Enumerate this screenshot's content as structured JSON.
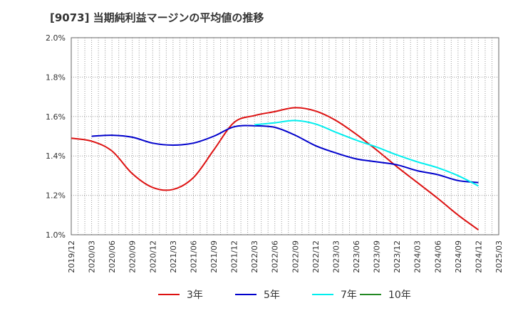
{
  "chart_data": {
    "type": "line",
    "title": "[9073]  当期純利益マージンの平均値の推移",
    "xlabel": "",
    "ylabel": "",
    "x_ticks": [
      "2019/12",
      "2020/03",
      "2020/06",
      "2020/09",
      "2020/12",
      "2021/03",
      "2021/06",
      "2021/09",
      "2021/12",
      "2022/03",
      "2022/06",
      "2022/09",
      "2022/12",
      "2023/03",
      "2023/06",
      "2023/09",
      "2023/12",
      "2024/03",
      "2024/06",
      "2024/09",
      "2024/12",
      "2025/03"
    ],
    "y_ticks": [
      "1.0%",
      "1.2%",
      "1.4%",
      "1.6%",
      "1.8%",
      "2.0%"
    ],
    "ylim": [
      1.0,
      2.0
    ],
    "grid": true,
    "legend_position": "bottom",
    "series": [
      {
        "name": "3年",
        "color": "#dd1111",
        "points": [
          [
            "2019/12",
            1.49
          ],
          [
            "2020/03",
            1.475
          ],
          [
            "2020/06",
            1.425
          ],
          [
            "2020/09",
            1.31
          ],
          [
            "2020/12",
            1.24
          ],
          [
            "2021/03",
            1.23
          ],
          [
            "2021/06",
            1.29
          ],
          [
            "2021/09",
            1.43
          ],
          [
            "2021/12",
            1.57
          ],
          [
            "2022/03",
            1.605
          ],
          [
            "2022/06",
            1.625
          ],
          [
            "2022/09",
            1.645
          ],
          [
            "2022/12",
            1.628
          ],
          [
            "2023/03",
            1.58
          ],
          [
            "2023/06",
            1.51
          ],
          [
            "2023/09",
            1.43
          ],
          [
            "2023/12",
            1.345
          ],
          [
            "2024/03",
            1.265
          ],
          [
            "2024/06",
            1.185
          ],
          [
            "2024/09",
            1.1
          ],
          [
            "2024/12",
            1.025
          ]
        ]
      },
      {
        "name": "5年",
        "color": "#0000cc",
        "points": [
          [
            "2020/03",
            1.5
          ],
          [
            "2020/06",
            1.505
          ],
          [
            "2020/09",
            1.495
          ],
          [
            "2020/12",
            1.465
          ],
          [
            "2021/03",
            1.455
          ],
          [
            "2021/06",
            1.465
          ],
          [
            "2021/09",
            1.5
          ],
          [
            "2021/12",
            1.548
          ],
          [
            "2022/03",
            1.553
          ],
          [
            "2022/06",
            1.545
          ],
          [
            "2022/09",
            1.505
          ],
          [
            "2022/12",
            1.452
          ],
          [
            "2023/03",
            1.415
          ],
          [
            "2023/06",
            1.385
          ],
          [
            "2023/09",
            1.37
          ],
          [
            "2023/12",
            1.355
          ],
          [
            "2024/03",
            1.325
          ],
          [
            "2024/06",
            1.305
          ],
          [
            "2024/09",
            1.275
          ],
          [
            "2024/12",
            1.265
          ]
        ]
      },
      {
        "name": "7年",
        "color": "#00eeee",
        "points": [
          [
            "2022/03",
            1.558
          ],
          [
            "2022/06",
            1.568
          ],
          [
            "2022/09",
            1.58
          ],
          [
            "2022/12",
            1.562
          ],
          [
            "2023/03",
            1.52
          ],
          [
            "2023/06",
            1.48
          ],
          [
            "2023/09",
            1.445
          ],
          [
            "2023/12",
            1.405
          ],
          [
            "2024/03",
            1.37
          ],
          [
            "2024/06",
            1.34
          ],
          [
            "2024/09",
            1.3
          ],
          [
            "2024/12",
            1.248
          ]
        ]
      },
      {
        "name": "10年",
        "color": "#228822",
        "points": []
      }
    ]
  }
}
